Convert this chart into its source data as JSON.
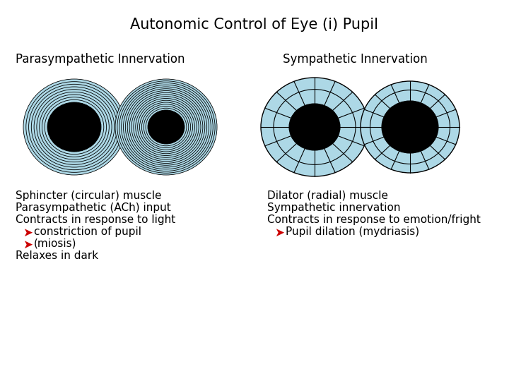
{
  "title": "Autonomic Control of Eye (i) Pupil",
  "left_label": "Parasympathetic Innervation",
  "right_label": "Sympathetic Innervation",
  "left_text_lines": [
    {
      "text": "Sphincter (circular) muscle",
      "arrow": false,
      "indent": false
    },
    {
      "text": "Parasympathetic (ACh) input",
      "arrow": false,
      "indent": false
    },
    {
      "text": "Contracts in response to light",
      "arrow": false,
      "indent": false
    },
    {
      "text": "constriction of pupil",
      "arrow": true,
      "indent": true
    },
    {
      "text": "(miosis)",
      "arrow": true,
      "indent": true
    },
    {
      "text": "Relaxes in dark",
      "arrow": false,
      "indent": false
    }
  ],
  "right_text_lines": [
    {
      "text": "Dilator (radial) muscle",
      "arrow": false,
      "indent": false
    },
    {
      "text": "Sympathetic innervation",
      "arrow": false,
      "indent": false
    },
    {
      "text": "Contracts in response to emotion/fright",
      "arrow": false,
      "indent": false
    },
    {
      "text": "Pupil dilation (mydriasis)",
      "arrow": true,
      "indent": true
    }
  ],
  "bg_color": "#ffffff",
  "ring_color": "#add8e6",
  "ring_edge": "#000000",
  "pupil_color": "#000000",
  "arrow_color": "#cc0000",
  "text_color": "#000000",
  "title_fontsize": 15,
  "label_fontsize": 12,
  "body_fontsize": 11
}
